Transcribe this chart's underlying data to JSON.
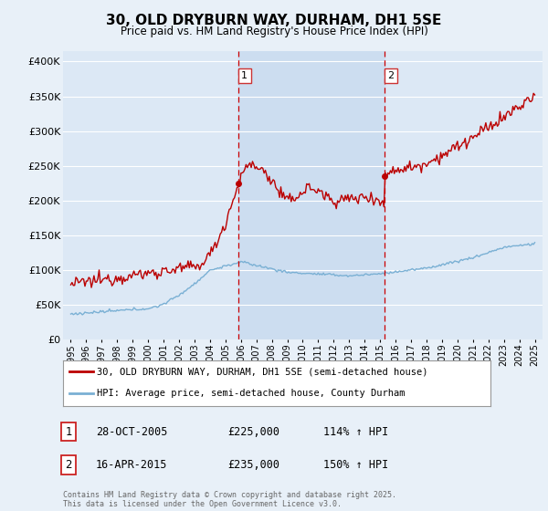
{
  "title": "30, OLD DRYBURN WAY, DURHAM, DH1 5SE",
  "subtitle": "Price paid vs. HM Land Registry's House Price Index (HPI)",
  "ylabel_ticks": [
    0,
    50000,
    100000,
    150000,
    200000,
    250000,
    300000,
    350000,
    400000
  ],
  "ylabel_labels": [
    "£0",
    "£50K",
    "£100K",
    "£150K",
    "£200K",
    "£250K",
    "£300K",
    "£350K",
    "£400K"
  ],
  "ylim": [
    0,
    415000
  ],
  "xlim_start": 1994.5,
  "xlim_end": 2025.5,
  "red_color": "#bb0000",
  "blue_color": "#7ab0d4",
  "vline_color": "#cc0000",
  "shade_color": "#ccddf0",
  "background_color": "#e8f0f8",
  "plot_bg_color": "#dce8f5",
  "grid_color": "#ffffff",
  "legend_label_red": "30, OLD DRYBURN WAY, DURHAM, DH1 5SE (semi-detached house)",
  "legend_label_blue": "HPI: Average price, semi-detached house, County Durham",
  "sale1_x": 2005.83,
  "sale1_y": 225000,
  "sale1_label": "1",
  "sale1_date": "28-OCT-2005",
  "sale1_price": "£225,000",
  "sale1_hpi": "114% ↑ HPI",
  "sale2_x": 2015.29,
  "sale2_y": 235000,
  "sale2_label": "2",
  "sale2_date": "16-APR-2015",
  "sale2_price": "£235,000",
  "sale2_hpi": "150% ↑ HPI",
  "footer": "Contains HM Land Registry data © Crown copyright and database right 2025.\nThis data is licensed under the Open Government Licence v3.0.",
  "x_ticks": [
    1995,
    1996,
    1997,
    1998,
    1999,
    2000,
    2001,
    2002,
    2003,
    2004,
    2005,
    2006,
    2007,
    2008,
    2009,
    2010,
    2011,
    2012,
    2013,
    2014,
    2015,
    2016,
    2017,
    2018,
    2019,
    2020,
    2021,
    2022,
    2023,
    2024,
    2025
  ]
}
